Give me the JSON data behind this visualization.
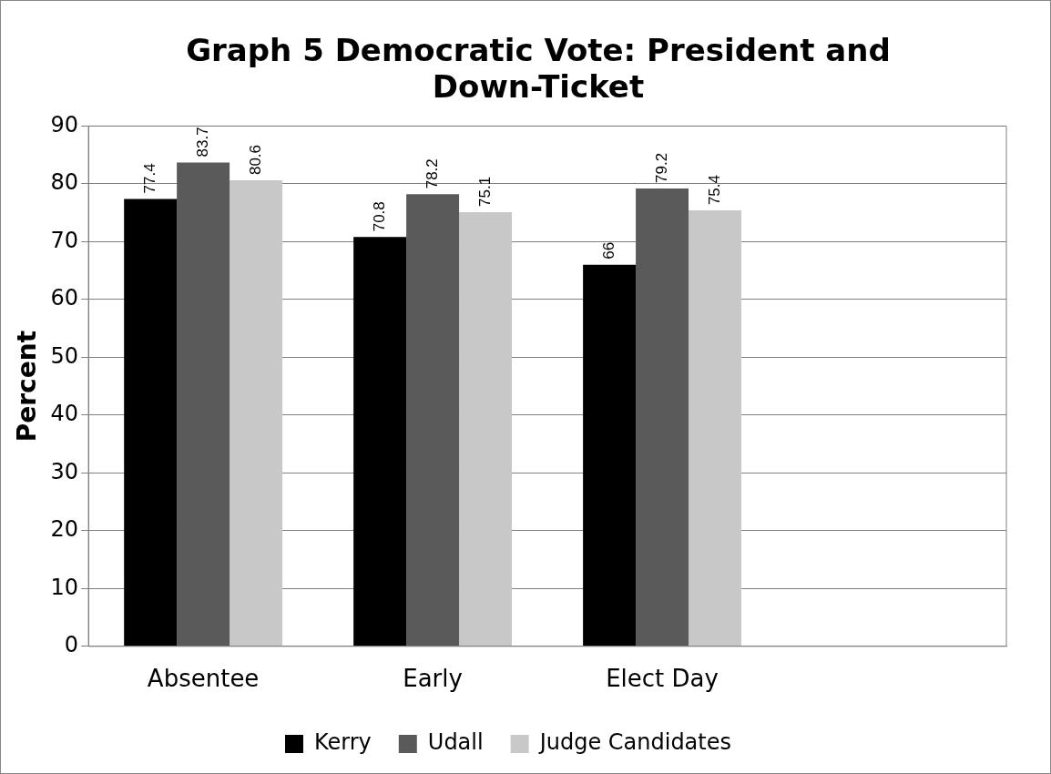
{
  "chart_data": {
    "type": "bar",
    "title": "Graph 5 Democratic Vote:  President and Down-Ticket",
    "ylabel": "Percent",
    "categories": [
      "Absentee",
      "Early",
      "Elect Day",
      null
    ],
    "series": [
      {
        "name": "Kerry",
        "color": "#000000",
        "values": [
          77.4,
          70.8,
          66,
          null
        ]
      },
      {
        "name": "Udall",
        "color": "#5a5a5a",
        "values": [
          83.7,
          78.2,
          79.2,
          null
        ]
      },
      {
        "name": "Judge Candidates",
        "color": "#c8c8c8",
        "values": [
          80.6,
          75.1,
          75.4,
          null
        ]
      }
    ],
    "ylim": [
      0,
      90
    ],
    "yticks": [
      0,
      10,
      20,
      30,
      40,
      50,
      60,
      70,
      80,
      90
    ],
    "grid": "y",
    "legend": "bottom",
    "data_labels": true
  }
}
